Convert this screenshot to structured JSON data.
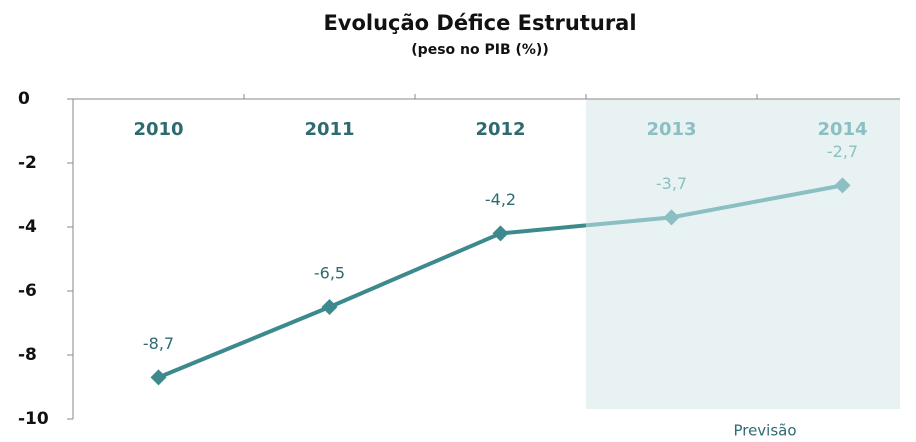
{
  "chart_data": {
    "type": "line",
    "title": "Evolução Défice Estrutural",
    "subtitle": "(peso no PIB (%))",
    "categories": [
      "2010",
      "2011",
      "2012",
      "2013",
      "2014"
    ],
    "values": [
      -8.7,
      -6.5,
      -4.2,
      -3.7,
      -2.7
    ],
    "value_labels": [
      "-8,7",
      "-6,5",
      "-4,2",
      "-3,7",
      "-2,7"
    ],
    "color": "#3d8a8e",
    "forecast_color": "#8bbfc2",
    "forecast_from": "2013",
    "annotation": "Previsão",
    "ylim": [
      -10,
      0
    ],
    "yticks": [
      0,
      -2,
      -4,
      -6,
      -8,
      -10
    ]
  }
}
